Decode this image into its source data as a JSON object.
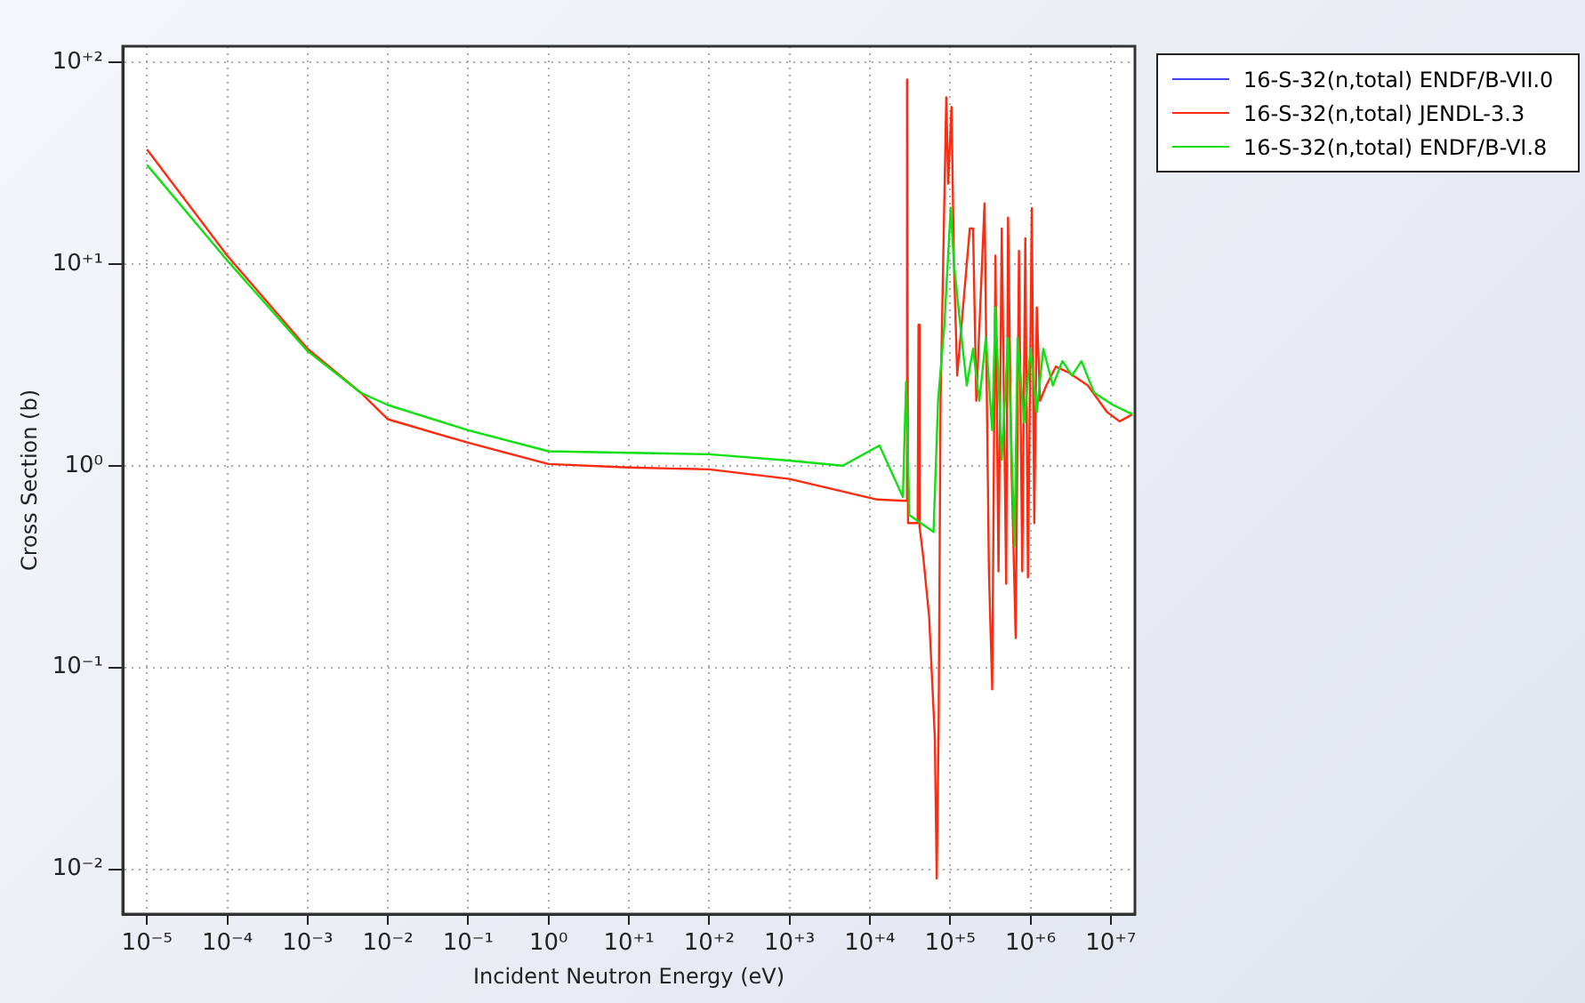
{
  "chart_data": {
    "type": "line",
    "xlabel": "Incident Neutron Energy (eV)",
    "ylabel": "Cross Section (b)",
    "log": "xy",
    "grid": true,
    "legend": "top right",
    "marker": "none",
    "line_style": "solid",
    "xlim": [
      5e-06,
      20000000.0
    ],
    "ylim": [
      0.006,
      120
    ],
    "xticks": [
      {
        "value": 1e-05,
        "label": "10⁻⁵"
      },
      {
        "value": 0.0001,
        "label": "10⁻⁴"
      },
      {
        "value": 0.001,
        "label": "10⁻³"
      },
      {
        "value": 0.01,
        "label": "10⁻²"
      },
      {
        "value": 0.1,
        "label": "10⁻¹"
      },
      {
        "value": 1,
        "label": "10⁰"
      },
      {
        "value": 10,
        "label": "10⁺¹"
      },
      {
        "value": 100,
        "label": "10⁺²"
      },
      {
        "value": 1000,
        "label": "10⁺³"
      },
      {
        "value": 10000,
        "label": "10⁺⁴"
      },
      {
        "value": 100000,
        "label": "10⁺⁵"
      },
      {
        "value": 1000000,
        "label": "10⁺⁶"
      },
      {
        "value": 10000000,
        "label": "10⁺⁷"
      }
    ],
    "yticks": [
      {
        "value": 0.01,
        "label": "10⁻²"
      },
      {
        "value": 0.1,
        "label": "10⁻¹"
      },
      {
        "value": 1,
        "label": "10⁰"
      },
      {
        "value": 10,
        "label": "10⁺¹"
      },
      {
        "value": 100,
        "label": "10⁺²"
      }
    ],
    "series": [
      {
        "name": "16-S-32(n,total) ENDF/B-VII.0",
        "color": "#4040ff"
      },
      {
        "name": "16-S-32(n,total) JENDL-3.3",
        "color": "#ff2a10",
        "x": [
          1e-05,
          0.0001,
          0.001,
          0.0046,
          0.01,
          0.1,
          1,
          10,
          100,
          1000,
          12400,
          28300,
          29100,
          29900,
          39400,
          40400,
          41600,
          46400,
          54700,
          64500,
          68100,
          71900,
          76000,
          89600,
          94600,
          104000,
          111600,
          122500,
          175800,
          193100,
          211800,
          268300,
          304100,
          334000,
          366500,
          400000,
          439300,
          498800,
          526400,
          578000,
          655600,
          719300,
          790500,
          862900,
          931000,
          1040000,
          1116000,
          1200000,
          1315000,
          1578000,
          2070000,
          2990000,
          5180000,
          8960000,
          12900000,
          18600000
        ],
        "values": [
          37,
          11,
          3.8,
          2.3,
          1.7,
          1.3,
          1.02,
          0.98,
          0.96,
          0.86,
          0.68,
          0.67,
          82,
          0.52,
          0.52,
          5,
          0.5,
          0.35,
          0.18,
          0.045,
          0.009,
          0.05,
          2.1,
          67,
          25,
          60,
          10,
          2.8,
          15,
          15,
          2.1,
          20,
          0.3,
          0.078,
          11,
          0.3,
          15,
          0.26,
          17,
          1.07,
          0.14,
          11.6,
          0.3,
          13.4,
          0.28,
          18.9,
          0.52,
          6.1,
          2.1,
          2.5,
          3.1,
          2.9,
          2.5,
          1.85,
          1.66,
          1.8
        ]
      },
      {
        "name": "16-S-32(n,total) ENDF/B-VI.8",
        "color": "#10e010",
        "x": [
          1e-05,
          0.0001,
          0.001,
          0.0046,
          0.01,
          0.1,
          1,
          10,
          100,
          1000,
          4600,
          13200,
          25800,
          28300,
          31100,
          62100,
          70800,
          84900,
          101600,
          111600,
          133700,
          161000,
          193100,
          231200,
          278700,
          334000,
          366500,
          439300,
          526400,
          634300,
          692000,
          834300,
          1000000,
          1200000,
          1445000,
          1900000,
          2500000,
          3290000,
          4320000,
          6210000,
          10700000,
          18600000
        ],
        "values": [
          31,
          10.4,
          3.7,
          2.3,
          2,
          1.5,
          1.18,
          1.16,
          1.14,
          1.06,
          1,
          1.26,
          0.7,
          2.6,
          0.57,
          0.47,
          2.1,
          5,
          19,
          10,
          5,
          2.5,
          3.8,
          2.1,
          4.3,
          1.5,
          6.1,
          1.07,
          4.3,
          0.4,
          4.3,
          1.63,
          3.8,
          1.85,
          3.8,
          2.5,
          3.3,
          2.8,
          3.3,
          2.3,
          2,
          1.8
        ]
      }
    ]
  }
}
